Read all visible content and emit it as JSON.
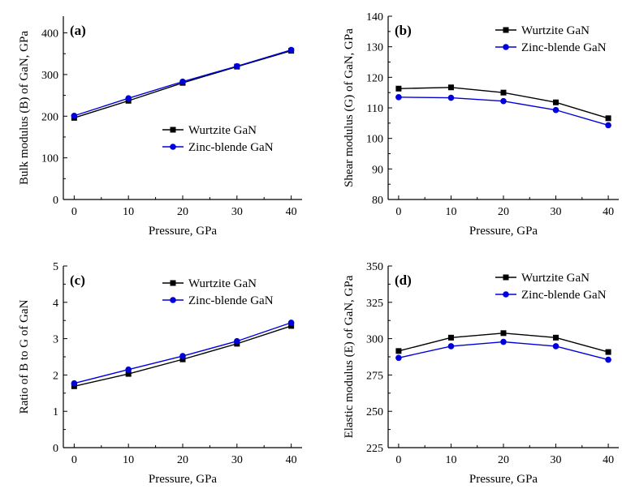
{
  "chart_data": [
    {
      "type": "line",
      "panel_label": "(a)",
      "xlabel": "Pressure, GPa",
      "ylabel": "Bulk modulus (B) of GaN, GPa",
      "x": [
        0,
        10,
        20,
        30,
        40
      ],
      "xlim": [
        -2,
        42
      ],
      "xticks": [
        0,
        10,
        20,
        30,
        40
      ],
      "ylim": [
        0,
        440
      ],
      "yticks": [
        0,
        100,
        200,
        300,
        400
      ],
      "legend_position": "center-right",
      "series": [
        {
          "name": "Wurtzite GaN",
          "marker": "square",
          "color": "#000000",
          "values": [
            196,
            237,
            280,
            319,
            357
          ]
        },
        {
          "name": "Zinc-blende GaN",
          "marker": "circle",
          "color": "#0000dd",
          "values": [
            201,
            243,
            283,
            320,
            359
          ]
        }
      ]
    },
    {
      "type": "line",
      "panel_label": "(b)",
      "xlabel": "Pressure, GPa",
      "ylabel": "Shear modulus (G) of GaN, GPa",
      "x": [
        0,
        10,
        20,
        30,
        40
      ],
      "xlim": [
        -2,
        42
      ],
      "xticks": [
        0,
        10,
        20,
        30,
        40
      ],
      "ylim": [
        80,
        140
      ],
      "yticks": [
        80,
        90,
        100,
        110,
        120,
        130,
        140
      ],
      "legend_position": "top-right",
      "series": [
        {
          "name": "Wurtzite GaN",
          "marker": "square",
          "color": "#000000",
          "values": [
            116.3,
            116.7,
            115.0,
            111.8,
            106.6
          ]
        },
        {
          "name": "Zinc-blende GaN",
          "marker": "circle",
          "color": "#0000dd",
          "values": [
            113.5,
            113.3,
            112.2,
            109.3,
            104.3
          ]
        }
      ]
    },
    {
      "type": "line",
      "panel_label": "(c)",
      "xlabel": "Pressure, GPa",
      "ylabel": "Ratio of B to G of GaN",
      "x": [
        0,
        10,
        20,
        30,
        40
      ],
      "xlim": [
        -2,
        42
      ],
      "xticks": [
        0,
        10,
        20,
        30,
        40
      ],
      "ylim": [
        0,
        5
      ],
      "yticks": [
        0,
        1,
        2,
        3,
        4,
        5
      ],
      "legend_position": "top-right",
      "series": [
        {
          "name": "Wurtzite GaN",
          "marker": "square",
          "color": "#000000",
          "values": [
            1.69,
            2.03,
            2.43,
            2.86,
            3.35
          ]
        },
        {
          "name": "Zinc-blende GaN",
          "marker": "circle",
          "color": "#0000dd",
          "values": [
            1.77,
            2.15,
            2.52,
            2.93,
            3.44
          ]
        }
      ]
    },
    {
      "type": "line",
      "panel_label": "(d)",
      "xlabel": "Pressure, GPa",
      "ylabel": "Elastic modulus (E) of GaN, GPa",
      "x": [
        0,
        10,
        20,
        30,
        40
      ],
      "xlim": [
        -2,
        42
      ],
      "xticks": [
        0,
        10,
        20,
        30,
        40
      ],
      "ylim": [
        225,
        350
      ],
      "yticks": [
        225,
        250,
        275,
        300,
        325,
        350
      ],
      "legend_position": "top-right",
      "series": [
        {
          "name": "Wurtzite GaN",
          "marker": "square",
          "color": "#000000",
          "values": [
            291.5,
            300.7,
            303.8,
            300.7,
            290.8
          ]
        },
        {
          "name": "Zinc-blende GaN",
          "marker": "circle",
          "color": "#0000dd",
          "values": [
            286.8,
            294.8,
            297.8,
            294.8,
            285.5
          ]
        }
      ]
    }
  ]
}
